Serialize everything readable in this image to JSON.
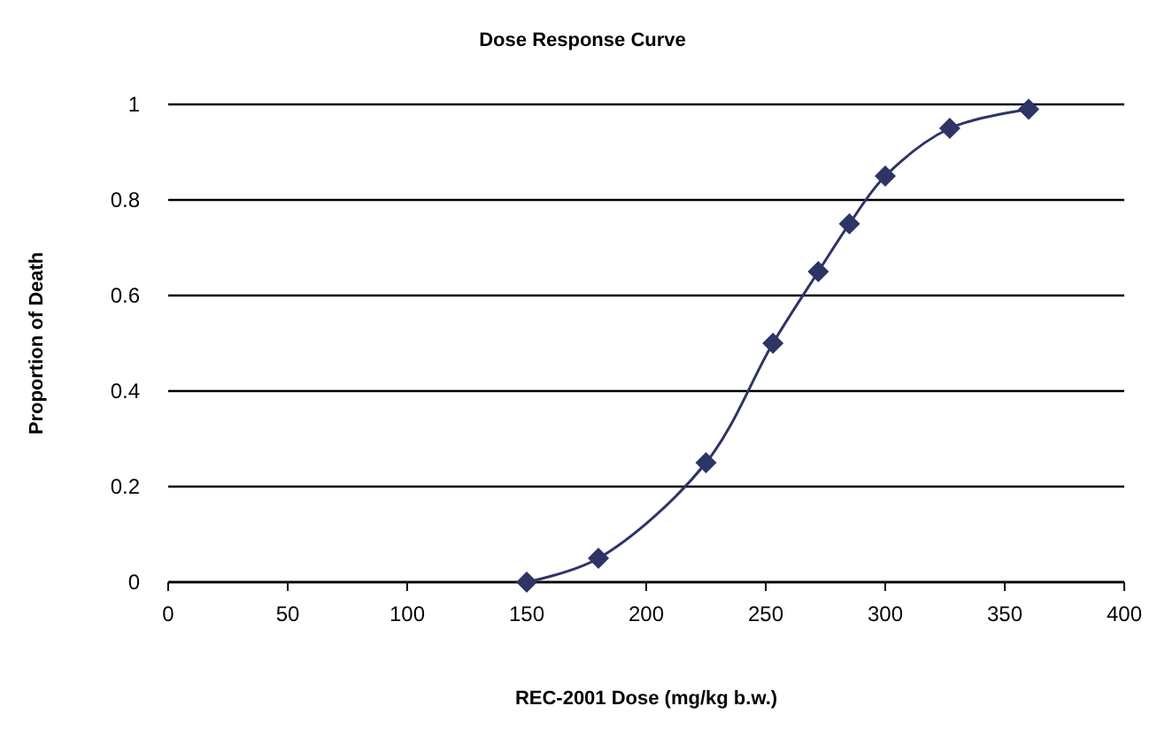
{
  "chart_data": {
    "type": "line",
    "title": "Dose Response Curve",
    "xlabel": "REC-2001 Dose (mg/kg b.w.)",
    "ylabel": "Proportion of Death",
    "x": [
      150,
      180,
      225,
      253,
      272,
      285,
      300,
      327,
      360
    ],
    "series": [
      {
        "color": "#2e3466",
        "values": [
          0,
          0.05,
          0.25,
          0.5,
          0.65,
          0.75,
          0.85,
          0.95,
          0.99
        ]
      }
    ],
    "xlim": [
      0,
      400
    ],
    "xticks": [
      0,
      50,
      100,
      150,
      200,
      250,
      300,
      350,
      400
    ],
    "ylim": [
      0,
      1
    ],
    "yticks": [
      0,
      0.2,
      0.4,
      0.6,
      0.8,
      1
    ],
    "grid": "y",
    "marker": "diamond",
    "line_style": "solid"
  }
}
